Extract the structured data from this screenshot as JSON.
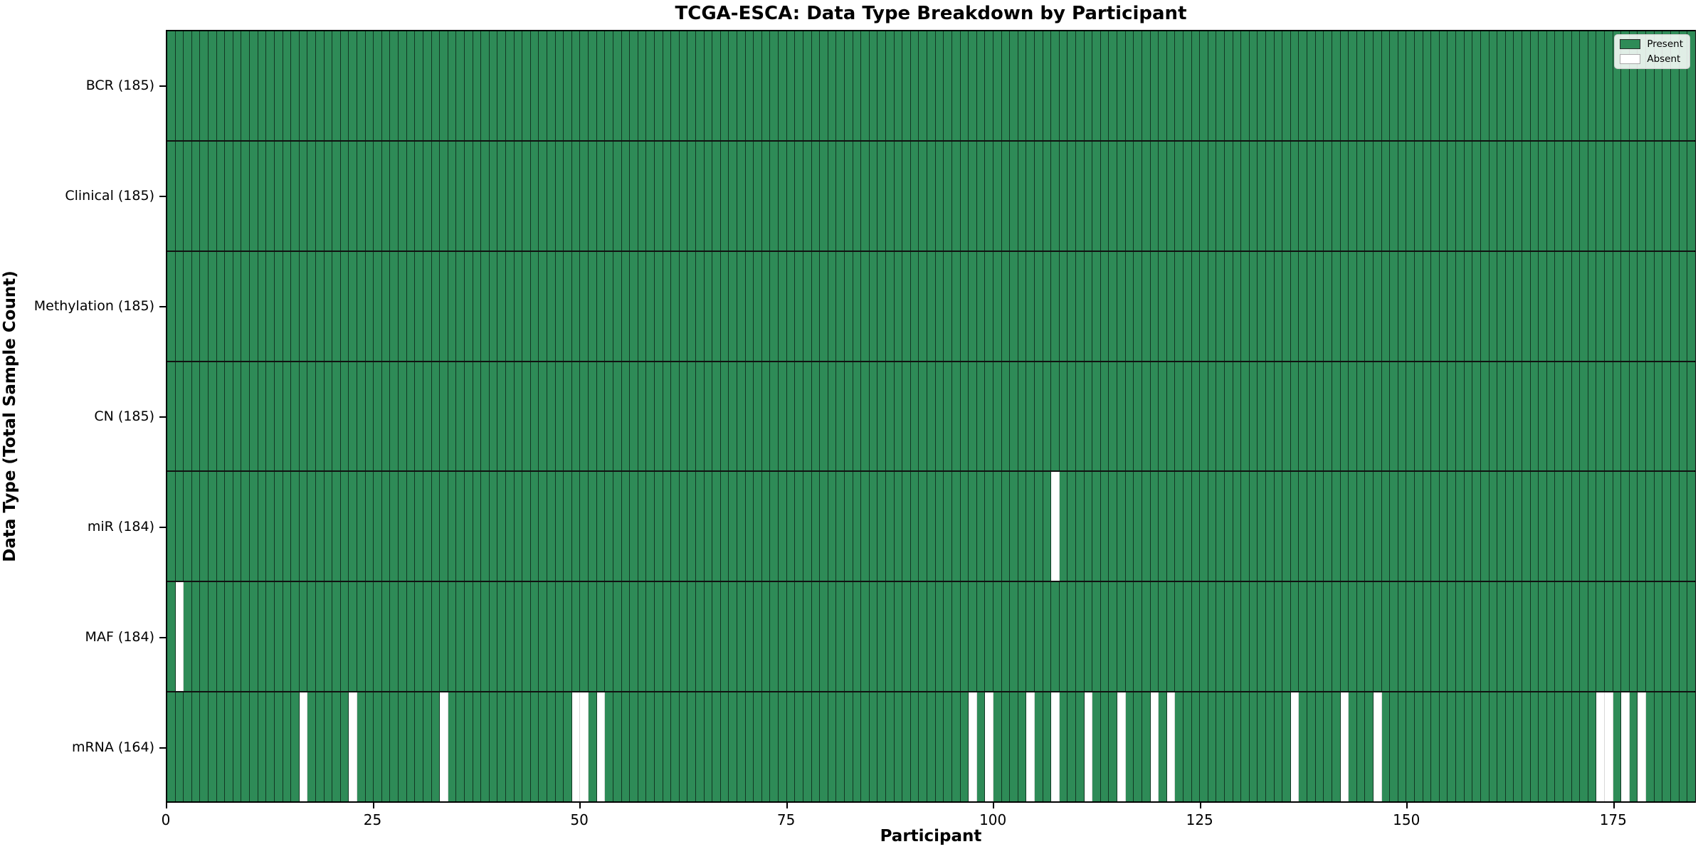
{
  "title": "TCGA-ESCA: Data Type Breakdown by Participant",
  "xlabel": "Participant",
  "ylabel": "Data Type (Total Sample Count)",
  "legend": {
    "present_label": "Present",
    "absent_label": "Absent"
  },
  "colors": {
    "present": "#2e8b57",
    "absent": "#ffffff",
    "edge": "#1a1a1a"
  },
  "chart_data": {
    "type": "heatmap",
    "title": "TCGA-ESCA: Data Type Breakdown by Participant",
    "xlabel": "Participant",
    "ylabel": "Data Type (Total Sample Count)",
    "x_range": [
      0,
      185
    ],
    "x_ticks": [
      0,
      25,
      50,
      75,
      100,
      125,
      150,
      175
    ],
    "n_participants": 185,
    "grid": false,
    "legend_position": "upper right",
    "legend_entries": [
      "Present",
      "Absent"
    ],
    "rows": [
      {
        "label": "BCR (185)",
        "data_type": "BCR",
        "total_present": 185,
        "absent_participants": []
      },
      {
        "label": "Clinical (185)",
        "data_type": "Clinical",
        "total_present": 185,
        "absent_participants": []
      },
      {
        "label": "Methylation (185)",
        "data_type": "Methylation",
        "total_present": 185,
        "absent_participants": []
      },
      {
        "label": "CN (185)",
        "data_type": "CN",
        "total_present": 185,
        "absent_participants": []
      },
      {
        "label": "miR (184)",
        "data_type": "miR",
        "total_present": 184,
        "absent_participants": [
          107
        ]
      },
      {
        "label": "MAF (184)",
        "data_type": "MAF",
        "total_present": 184,
        "absent_participants": [
          1
        ]
      },
      {
        "label": "mRNA (164)",
        "data_type": "mRNA",
        "total_present": 164,
        "absent_participants": [
          16,
          22,
          33,
          49,
          50,
          52,
          97,
          99,
          104,
          107,
          111,
          115,
          119,
          121,
          136,
          142,
          146,
          173,
          174,
          176,
          178
        ]
      }
    ]
  }
}
